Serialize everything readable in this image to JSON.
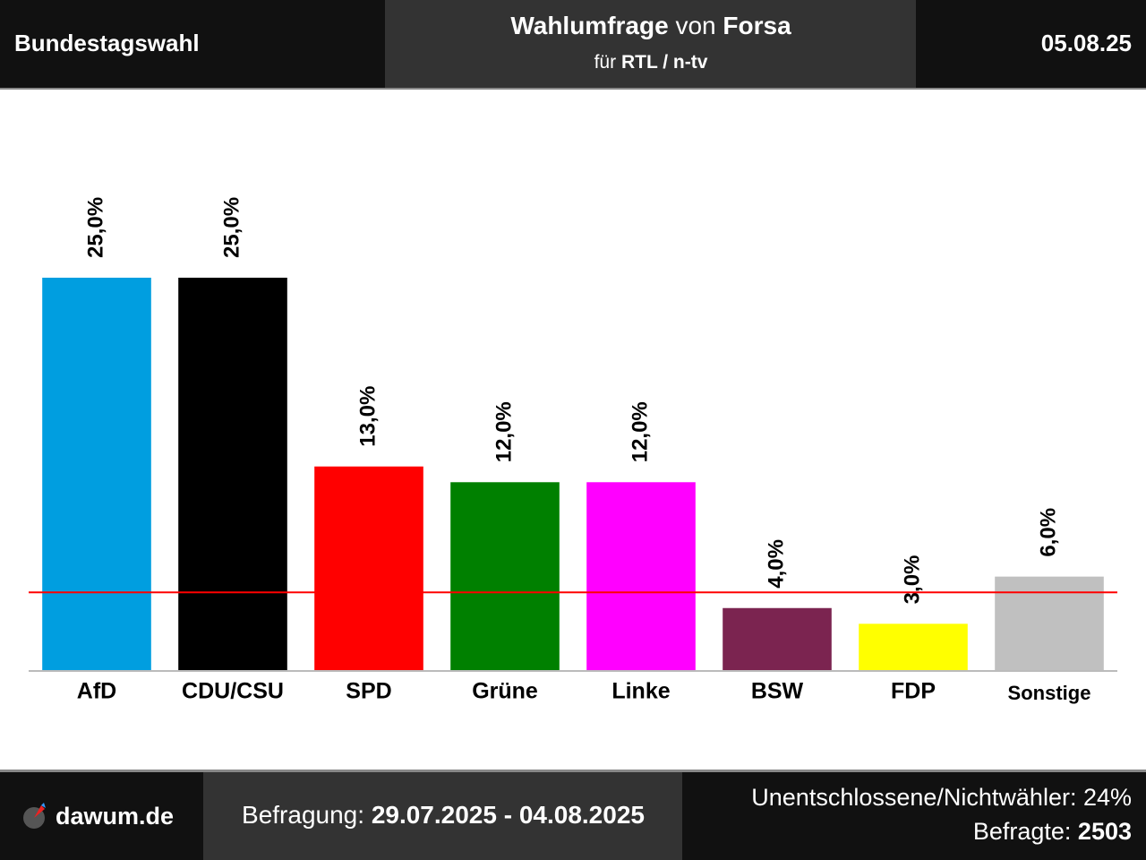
{
  "header": {
    "left": "Bundestagswahl",
    "title": [
      "Wahlumfrage",
      "von",
      "Forsa"
    ],
    "subtitle": [
      "für",
      "RTL / n-tv"
    ],
    "date": "05.08.25"
  },
  "footer": {
    "brand": "dawum.de",
    "period_label": "Befragung:",
    "period": "29.07.2025 - 04.08.2025",
    "undecided": "Unentschlossene/Nichtwähler: 24%",
    "respondents_label": "Befragte:",
    "respondents": 2503
  },
  "chart_data": {
    "type": "bar",
    "categories": [
      "AfD",
      "CDU/CSU",
      "SPD",
      "Grüne",
      "Linke",
      "BSW",
      "FDP",
      "Sonstige"
    ],
    "values": [
      25,
      25,
      13,
      12,
      12,
      4,
      3,
      6
    ],
    "value_labels": [
      "25,0%",
      "25,0%",
      "13,0%",
      "12,0%",
      "12,0%",
      "4,0%",
      "3,0%",
      "6,0%"
    ],
    "colors": [
      "#009ee0",
      "#000000",
      "#ff0000",
      "#008000",
      "#ff00ff",
      "#7b2450",
      "#ffff00",
      "#c0c0c0"
    ],
    "ylim": [
      0,
      25
    ],
    "threshold": 5,
    "threshold_color": "#ff0000"
  }
}
